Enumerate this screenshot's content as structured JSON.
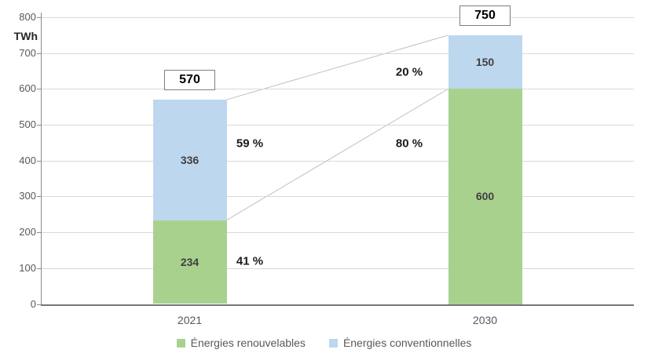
{
  "chart_data": {
    "type": "bar",
    "stacked": true,
    "title": "",
    "unit_label": "TWh",
    "categories": [
      "2021",
      "2030"
    ],
    "series": [
      {
        "name": "Énergies renouvelables",
        "color": "#a9d18e",
        "values": [
          234,
          600
        ],
        "percent_labels": [
          "41 %",
          "80 %"
        ]
      },
      {
        "name": "Énergies conventionnelles",
        "color": "#bdd7ee",
        "values": [
          336,
          150
        ],
        "percent_labels": [
          "59 %",
          "20 %"
        ]
      }
    ],
    "totals": [
      570,
      750
    ],
    "ylim": [
      0,
      800
    ],
    "yticks": [
      0,
      100,
      200,
      300,
      400,
      500,
      600,
      700,
      800
    ],
    "grid": true,
    "legend_position": "bottom",
    "connector_lines": true
  },
  "colors": {
    "grid": "#d9d9d9",
    "axis": "#8c8c8c",
    "connector": "#c0c0c0",
    "tick_text": "#595959",
    "value_text": "#3f3f3f",
    "bold_text": "#000000"
  }
}
